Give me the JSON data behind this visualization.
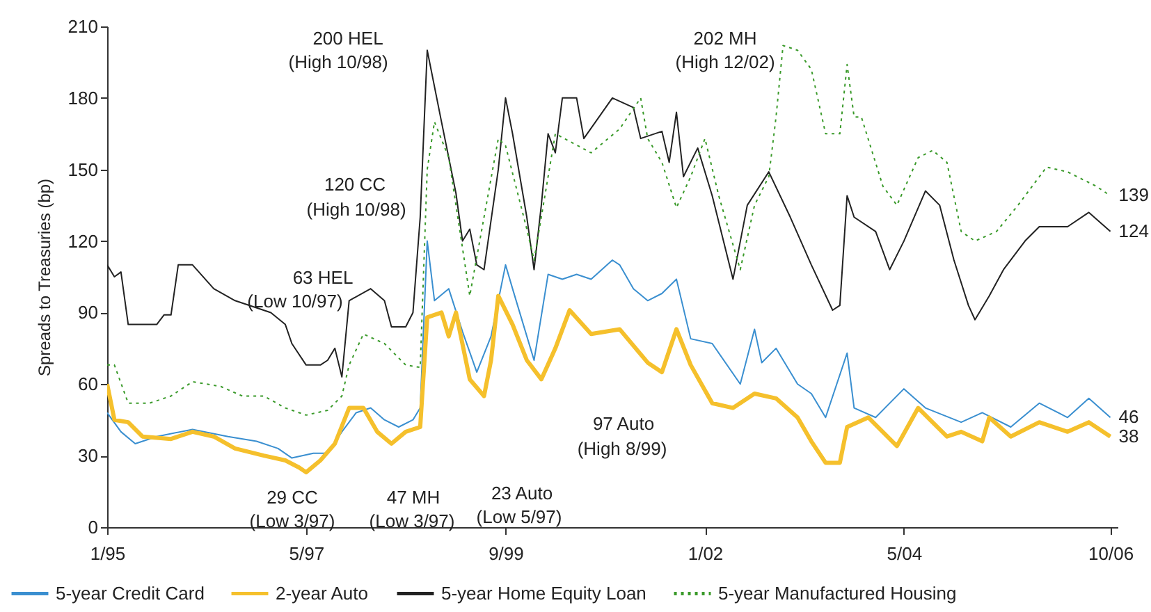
{
  "chart_data": {
    "type": "line",
    "ylabel": "Spreads to Treasuries (bp)",
    "xlim": [
      "1995-01",
      "2006-11"
    ],
    "xticks": [
      {
        "value": "1995-01",
        "label": "1/95"
      },
      {
        "value": "1997-05",
        "label": "5/97"
      },
      {
        "value": "1999-09",
        "label": "9/99"
      },
      {
        "value": "2002-01",
        "label": "1/02"
      },
      {
        "value": "2004-05",
        "label": "5/04"
      },
      {
        "value": "2006-10",
        "label": "10/06"
      }
    ],
    "ylim": [
      0,
      210
    ],
    "yticks": [
      0,
      30,
      60,
      90,
      120,
      150,
      180,
      210
    ],
    "grid": false,
    "legend": "bottom",
    "marker": "none",
    "series": [
      {
        "name": "5-year Credit Card",
        "color": "#3a8fd0",
        "line_style": "solid",
        "x": [
          "1995-01",
          "1995-03",
          "1995-05",
          "1995-08",
          "1996-01",
          "1996-06",
          "1996-10",
          "1997-01",
          "1997-03",
          "1997-06",
          "1997-08",
          "1997-10",
          "1997-12",
          "1998-02",
          "1998-04",
          "1998-06",
          "1998-08",
          "1998-09",
          "1998-10",
          "1998-11",
          "1999-01",
          "1999-03",
          "1999-05",
          "1999-07",
          "1999-09",
          "1999-10",
          "2000-01",
          "2000-03",
          "2000-05",
          "2000-07",
          "2000-09",
          "2000-12",
          "2001-01",
          "2001-03",
          "2001-05",
          "2001-07",
          "2001-09",
          "2001-11",
          "2002-02",
          "2002-06",
          "2002-08",
          "2002-09",
          "2002-11",
          "2003-02",
          "2003-04",
          "2003-06",
          "2003-09",
          "2003-10",
          "2004-01",
          "2004-05",
          "2004-08",
          "2005-01",
          "2005-04",
          "2005-08",
          "2005-12",
          "2006-04",
          "2006-07",
          "2006-10"
        ],
        "values": [
          48,
          40,
          35,
          38,
          41,
          38,
          36,
          33,
          29,
          31,
          31,
          40,
          48,
          50,
          45,
          42,
          45,
          50,
          120,
          95,
          100,
          82,
          65,
          80,
          110,
          100,
          70,
          106,
          104,
          106,
          104,
          112,
          110,
          100,
          95,
          98,
          104,
          79,
          77,
          60,
          83,
          69,
          75,
          60,
          56,
          46,
          73,
          50,
          46,
          58,
          50,
          44,
          48,
          42,
          52,
          46,
          54,
          46
        ]
      },
      {
        "name": "2-year Auto",
        "color": "#f5c02c",
        "line_style": "solid",
        "x": [
          "1995-01",
          "1995-02",
          "1995-04",
          "1995-06",
          "1995-10",
          "1996-01",
          "1996-04",
          "1996-07",
          "1996-11",
          "1997-02",
          "1997-04",
          "1997-05",
          "1997-07",
          "1997-09",
          "1997-11",
          "1998-01",
          "1998-03",
          "1998-05",
          "1998-07",
          "1998-09",
          "1998-10",
          "1998-12",
          "1999-01",
          "1999-02",
          "1999-04",
          "1999-06",
          "1999-07",
          "1999-08",
          "1999-10",
          "1999-12",
          "2000-02",
          "2000-04",
          "2000-06",
          "2000-09",
          "2001-01",
          "2001-05",
          "2001-07",
          "2001-09",
          "2001-11",
          "2002-02",
          "2002-05",
          "2002-08",
          "2002-11",
          "2003-02",
          "2003-04",
          "2003-06",
          "2003-08",
          "2003-09",
          "2003-12",
          "2004-04",
          "2004-07",
          "2004-11",
          "2005-01",
          "2005-04",
          "2005-05",
          "2005-08",
          "2005-12",
          "2006-04",
          "2006-07",
          "2006-10"
        ],
        "values": [
          60,
          45,
          44,
          38,
          37,
          40,
          38,
          33,
          30,
          28,
          25,
          23,
          28,
          35,
          50,
          50,
          40,
          35,
          40,
          42,
          88,
          90,
          80,
          90,
          62,
          55,
          70,
          97,
          85,
          70,
          62,
          75,
          91,
          81,
          83,
          69,
          65,
          83,
          68,
          52,
          50,
          56,
          54,
          46,
          36,
          27,
          27,
          42,
          46,
          34,
          50,
          38,
          40,
          36,
          46,
          38,
          44,
          40,
          44,
          38
        ]
      },
      {
        "name": "5-year Home Equity Loan",
        "color": "#222222",
        "line_style": "solid",
        "x": [
          "1995-01",
          "1995-02",
          "1995-03",
          "1995-04",
          "1995-08",
          "1995-09",
          "1995-10",
          "1995-11",
          "1996-01",
          "1996-04",
          "1996-07",
          "1996-12",
          "1997-02",
          "1997-03",
          "1997-05",
          "1997-07",
          "1997-08",
          "1997-09",
          "1997-10",
          "1997-11",
          "1998-02",
          "1998-04",
          "1998-05",
          "1998-07",
          "1998-08",
          "1998-09",
          "1998-10",
          "1998-12",
          "1999-02",
          "1999-03",
          "1999-04",
          "1999-05",
          "1999-06",
          "1999-08",
          "1999-09",
          "1999-10",
          "1999-12",
          "2000-01",
          "2000-02",
          "2000-03",
          "2000-04",
          "2000-05",
          "2000-07",
          "2000-08",
          "2000-12",
          "2001-03",
          "2001-04",
          "2001-07",
          "2001-08",
          "2001-09",
          "2001-10",
          "2001-12",
          "2002-02",
          "2002-05",
          "2002-07",
          "2002-10",
          "2003-01",
          "2003-04",
          "2003-07",
          "2003-08",
          "2003-09",
          "2003-10",
          "2004-01",
          "2004-03",
          "2004-05",
          "2004-08",
          "2004-10",
          "2004-12",
          "2005-02",
          "2005-03",
          "2005-05",
          "2005-07",
          "2005-10",
          "2005-12",
          "2006-04",
          "2006-07",
          "2006-10"
        ],
        "values": [
          110,
          105,
          107,
          85,
          85,
          89,
          89,
          110,
          110,
          100,
          95,
          90,
          85,
          77,
          68,
          68,
          70,
          75,
          63,
          95,
          100,
          95,
          84,
          84,
          90,
          130,
          200,
          170,
          140,
          120,
          125,
          110,
          108,
          150,
          180,
          165,
          130,
          108,
          135,
          165,
          157,
          180,
          180,
          163,
          180,
          176,
          163,
          166,
          153,
          174,
          147,
          159,
          139,
          104,
          135,
          149,
          130,
          110,
          91,
          93,
          139,
          130,
          124,
          108,
          120,
          141,
          135,
          112,
          93,
          87,
          97,
          108,
          120,
          126,
          126,
          132,
          124
        ]
      },
      {
        "name": "5-year Manufactured Housing",
        "color": "#3a9a2a",
        "line_style": "dotted",
        "x": [
          "1995-01",
          "1995-02",
          "1995-04",
          "1995-07",
          "1995-10",
          "1996-01",
          "1996-05",
          "1996-08",
          "1996-11",
          "1997-02",
          "1997-05",
          "1997-08",
          "1997-10",
          "1997-11",
          "1998-01",
          "1998-04",
          "1998-07",
          "1998-09",
          "1998-10",
          "1998-11",
          "1999-01",
          "1999-04",
          "1999-08",
          "1999-09",
          "1999-12",
          "2000-01",
          "2000-04",
          "2000-09",
          "2001-01",
          "2001-04",
          "2001-05",
          "2001-07",
          "2001-09",
          "2001-11",
          "2002-01",
          "2002-03",
          "2002-06",
          "2002-08",
          "2002-10",
          "2002-11",
          "2002-12",
          "2003-02",
          "2003-04",
          "2003-06",
          "2003-08",
          "2003-09",
          "2003-10",
          "2003-11",
          "2004-02",
          "2004-04",
          "2004-07",
          "2004-09",
          "2004-11",
          "2005-01",
          "2005-03",
          "2005-06",
          "2005-09",
          "2006-01",
          "2006-04",
          "2006-08",
          "2006-10"
        ],
        "values": [
          68,
          68,
          52,
          52,
          55,
          61,
          59,
          55,
          55,
          50,
          47,
          49,
          55,
          68,
          81,
          77,
          68,
          67,
          150,
          170,
          155,
          97,
          163,
          160,
          125,
          112,
          165,
          157,
          167,
          180,
          163,
          153,
          134,
          147,
          163,
          139,
          108,
          135,
          147,
          172,
          202,
          200,
          192,
          165,
          165,
          194,
          172,
          172,
          143,
          135,
          155,
          158,
          153,
          124,
          120,
          124,
          135,
          151,
          149,
          143,
          139
        ]
      }
    ],
    "annotations": [
      "200 HEL",
      "(High 10/98)",
      "120 CC",
      "(High 10/98)",
      "63 HEL",
      "(Low 10/97)",
      "29 CC",
      "(Low 3/97)",
      "47 MH",
      "(Low 3/97)",
      "23 Auto",
      "(Low 5/97)",
      "97 Auto",
      "(High 8/99)",
      "202 MH",
      "(High 12/02)",
      {
        "text": "139",
        "x": "2006-10",
        "y": 139
      },
      {
        "text": "124",
        "x": "2006-10",
        "y": 124
      },
      {
        "text": "46",
        "x": "2006-10",
        "y": 46
      },
      {
        "text": "38",
        "x": "2006-10",
        "y": 38
      }
    ]
  }
}
